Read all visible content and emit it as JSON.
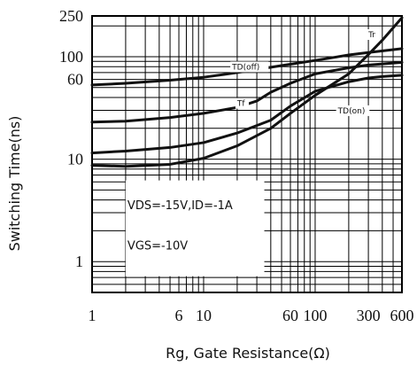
{
  "chart_data": {
    "type": "line",
    "xscale": "log",
    "yscale": "log",
    "xlim": [
      1,
      600
    ],
    "ylim": [
      0.5,
      250
    ],
    "xlabel": "Rg, Gate Resistance(Ω)",
    "ylabel": "Switching Time(ns)",
    "x_ticks": [
      {
        "value": 1,
        "label": "1"
      },
      {
        "value": 6,
        "label": "6"
      },
      {
        "value": 10,
        "label": "10"
      },
      {
        "value": 60,
        "label": "60"
      },
      {
        "value": 100,
        "label": "100"
      },
      {
        "value": 300,
        "label": "300"
      },
      {
        "value": 600,
        "label": "600"
      }
    ],
    "y_ticks": [
      {
        "value": 1,
        "label": "1"
      },
      {
        "value": 10,
        "label": "10"
      },
      {
        "value": 60,
        "label": "60"
      },
      {
        "value": 100,
        "label": "100"
      },
      {
        "value": 250,
        "label": "250"
      }
    ],
    "grid": true,
    "annotations": [
      "VDS=-15V,ID=-1A",
      "VGS=-10V"
    ],
    "series": [
      {
        "name": "Tr",
        "x": [
          1,
          2,
          5,
          10,
          20,
          40,
          60,
          100,
          200,
          300,
          400,
          600
        ],
        "y": [
          8.7,
          8.5,
          8.9,
          10.2,
          13.5,
          20,
          28,
          42,
          68,
          105,
          145,
          240
        ],
        "label_at": [
          300,
          155
        ]
      },
      {
        "name": "TD(off)",
        "x": [
          1,
          2,
          5,
          10,
          20,
          50,
          100,
          200,
          300,
          600
        ],
        "y": [
          53,
          55,
          59,
          63,
          70,
          82,
          92,
          104,
          110,
          120
        ],
        "label_at": [
          18,
          75
        ]
      },
      {
        "name": "Tf",
        "x": [
          1,
          2,
          5,
          10,
          20,
          30,
          40,
          60,
          100,
          200,
          300,
          600
        ],
        "y": [
          23,
          23.5,
          25.5,
          28,
          32,
          37,
          45,
          55,
          68,
          78,
          83,
          88
        ],
        "label_at": [
          20,
          33
        ]
      },
      {
        "name": "TD(on)",
        "x": [
          1,
          2,
          5,
          10,
          20,
          40,
          60,
          100,
          200,
          300,
          400,
          600
        ],
        "y": [
          11.5,
          12,
          13,
          14.5,
          18,
          24,
          33,
          46,
          57,
          62,
          64,
          66
        ],
        "label_at": [
          160,
          28
        ]
      }
    ]
  }
}
